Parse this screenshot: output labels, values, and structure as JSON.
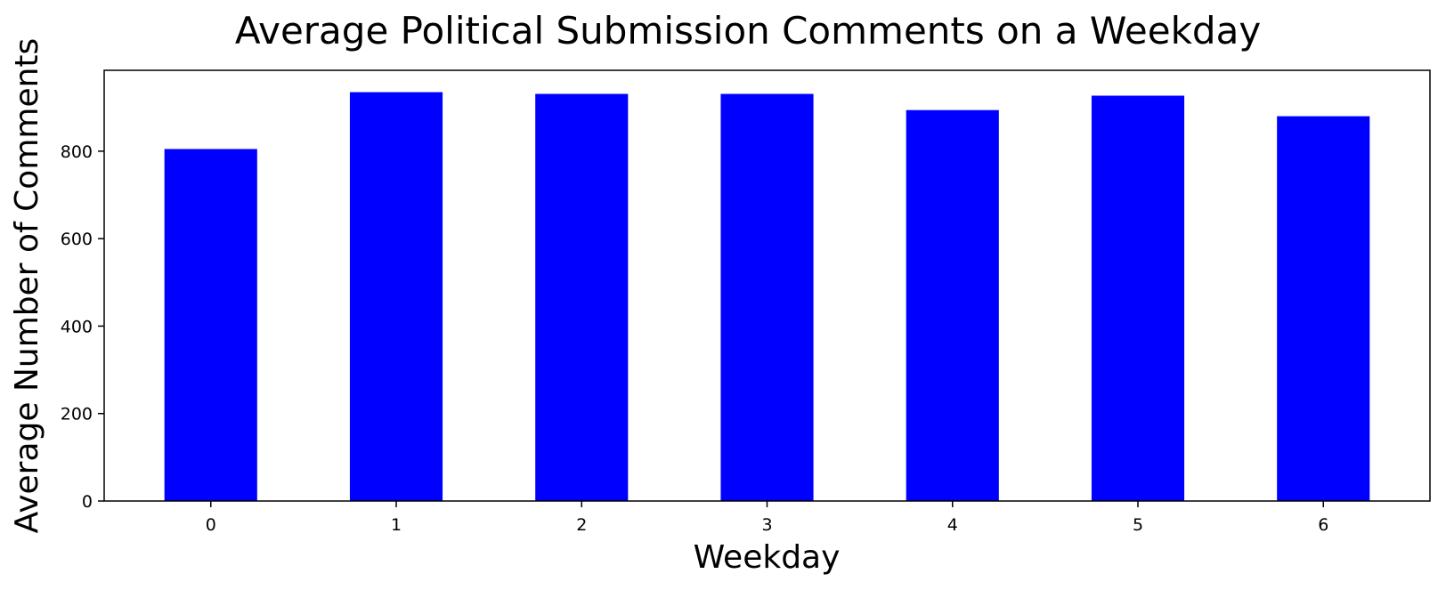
{
  "chart_data": {
    "type": "bar",
    "title": "Average Political Submission Comments on a Weekday",
    "xlabel": "Weekday",
    "ylabel": "Average Number of Comments",
    "categories": [
      "0",
      "1",
      "2",
      "3",
      "4",
      "5",
      "6"
    ],
    "values": [
      805,
      935,
      931,
      931,
      894,
      927,
      880
    ],
    "ylim": [
      0,
      985
    ],
    "yticks": [
      0,
      200,
      400,
      600,
      800
    ],
    "bar_color": "#0000ff",
    "grid": false,
    "legend": "none"
  }
}
